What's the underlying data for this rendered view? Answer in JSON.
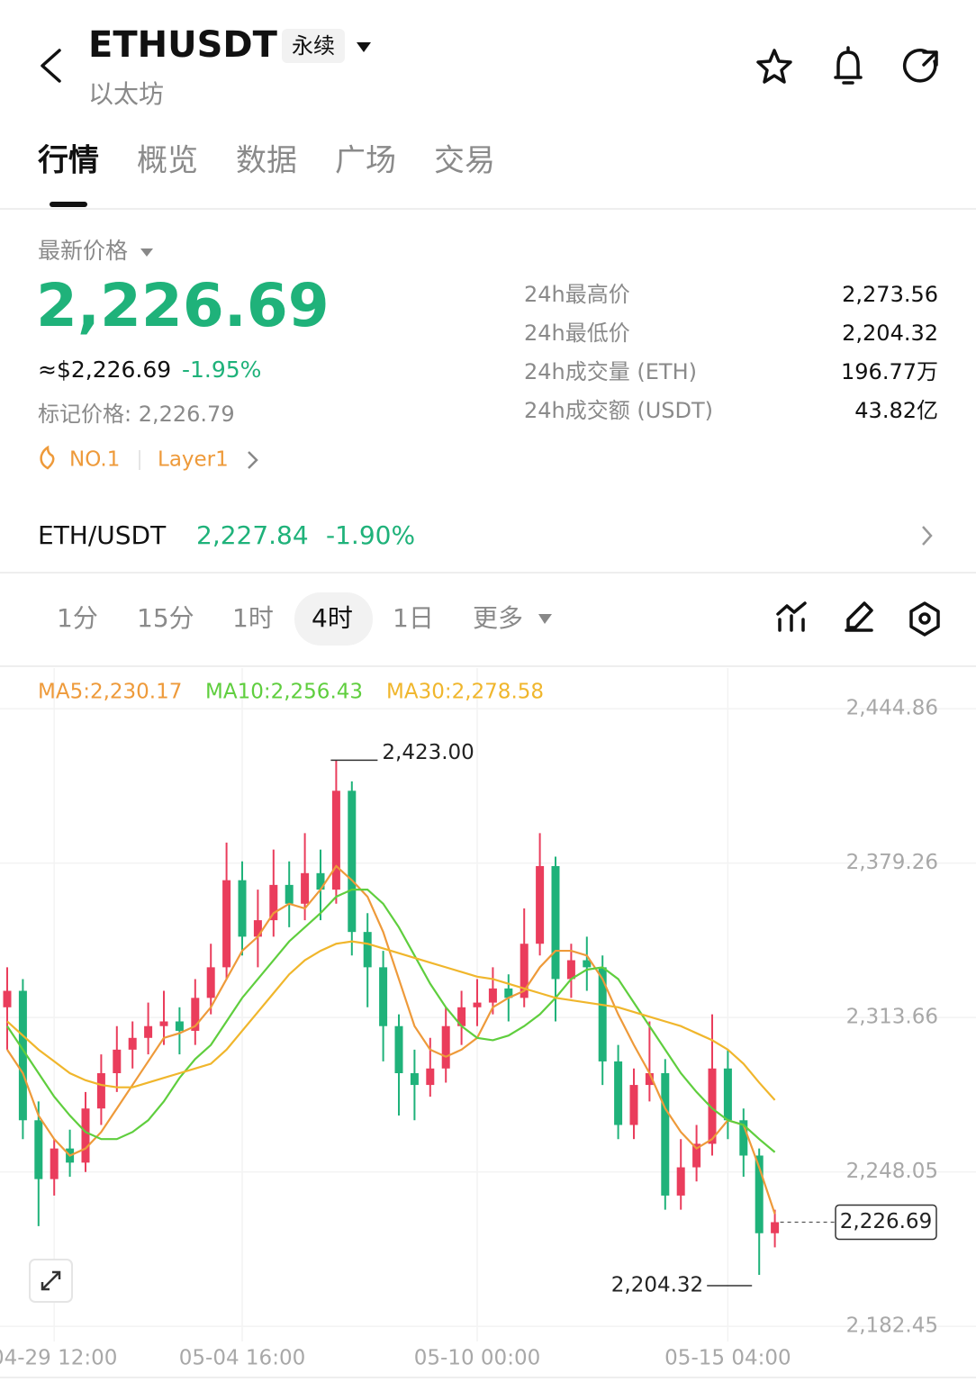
{
  "header": {
    "symbol": "ETHUSDT",
    "contract": "永续",
    "name": "以太坊"
  },
  "tabs": [
    "行情",
    "概览",
    "数据",
    "广场",
    "交易"
  ],
  "price": {
    "label": "最新价格",
    "last": "2,226.69",
    "usd": "≈$2,226.69",
    "change": "-1.95%",
    "mark": "标记价格: 2,226.79",
    "tags": [
      "NO.1",
      "Layer1"
    ]
  },
  "stats": [
    {
      "label": "24h最高价",
      "value": "2,273.56"
    },
    {
      "label": "24h最低价",
      "value": "2,204.32"
    },
    {
      "label": "24h成交量 (ETH)",
      "value": "196.77万"
    },
    {
      "label": "24h成交额 (USDT)",
      "value": "43.82亿"
    }
  ],
  "spot": {
    "pair": "ETH/USDT",
    "price": "2,227.84",
    "change": "-1.90%"
  },
  "intervals": [
    "1分",
    "15分",
    "1时",
    "4时",
    "1日",
    "更多"
  ],
  "chart_data": {
    "type": "candlestick",
    "up_color": "#ea3d5c",
    "down_color": "#1fb27a",
    "categories": [
      null,
      null,
      null,
      "04-29 12:00",
      null,
      null,
      null,
      null,
      null,
      null,
      null,
      null,
      null,
      null,
      null,
      "05-04 16:00",
      null,
      null,
      null,
      null,
      null,
      null,
      null,
      null,
      null,
      null,
      null,
      null,
      null,
      null,
      "05-10 00:00",
      null,
      null,
      null,
      null,
      null,
      null,
      null,
      null,
      null,
      null,
      null,
      null,
      null,
      null,
      null,
      "05-15 04:00",
      null,
      null,
      null
    ],
    "ohlc": [
      [
        2318,
        2335,
        2300,
        2325
      ],
      [
        2325,
        2330,
        2262,
        2270
      ],
      [
        2270,
        2278,
        2225,
        2245
      ],
      [
        2245,
        2262,
        2238,
        2258
      ],
      [
        2258,
        2266,
        2246,
        2252
      ],
      [
        2252,
        2282,
        2248,
        2275
      ],
      [
        2275,
        2298,
        2268,
        2290
      ],
      [
        2290,
        2310,
        2282,
        2300
      ],
      [
        2300,
        2312,
        2292,
        2305
      ],
      [
        2305,
        2320,
        2298,
        2310
      ],
      [
        2310,
        2325,
        2302,
        2312
      ],
      [
        2312,
        2318,
        2298,
        2308
      ],
      [
        2308,
        2330,
        2302,
        2322
      ],
      [
        2322,
        2345,
        2315,
        2335
      ],
      [
        2335,
        2388,
        2330,
        2372
      ],
      [
        2372,
        2380,
        2340,
        2348
      ],
      [
        2348,
        2368,
        2335,
        2355
      ],
      [
        2355,
        2385,
        2348,
        2370
      ],
      [
        2370,
        2380,
        2352,
        2362
      ],
      [
        2362,
        2392,
        2355,
        2375
      ],
      [
        2375,
        2385,
        2355,
        2368
      ],
      [
        2368,
        2423.0,
        2362,
        2410
      ],
      [
        2410,
        2414,
        2340,
        2350
      ],
      [
        2350,
        2358,
        2318,
        2335
      ],
      [
        2335,
        2342,
        2295,
        2310
      ],
      [
        2310,
        2315,
        2272,
        2290
      ],
      [
        2290,
        2300,
        2270,
        2285
      ],
      [
        2285,
        2305,
        2280,
        2292
      ],
      [
        2292,
        2318,
        2286,
        2310
      ],
      [
        2310,
        2325,
        2302,
        2318
      ],
      [
        2318,
        2330,
        2310,
        2320
      ],
      [
        2320,
        2335,
        2315,
        2326
      ],
      [
        2326,
        2332,
        2312,
        2322
      ],
      [
        2322,
        2360,
        2318,
        2345
      ],
      [
        2345,
        2392,
        2340,
        2378
      ],
      [
        2378,
        2382,
        2312,
        2330
      ],
      [
        2330,
        2345,
        2322,
        2338
      ],
      [
        2338,
        2348,
        2325,
        2335
      ],
      [
        2335,
        2340,
        2285,
        2295
      ],
      [
        2295,
        2302,
        2262,
        2268
      ],
      [
        2268,
        2292,
        2262,
        2285
      ],
      [
        2285,
        2312,
        2278,
        2290
      ],
      [
        2290,
        2296,
        2232,
        2238
      ],
      [
        2238,
        2262,
        2232,
        2250
      ],
      [
        2250,
        2268,
        2244,
        2260
      ],
      [
        2260,
        2315,
        2255,
        2292
      ],
      [
        2292,
        2300,
        2262,
        2270
      ],
      [
        2270,
        2275,
        2246,
        2255
      ],
      [
        2255,
        2258,
        2204.32,
        2222
      ],
      [
        2222,
        2232,
        2216,
        2226.69
      ]
    ],
    "ma": [
      {
        "name": "MA5:2,230.17",
        "color": "#ee9a3a",
        "values": [
          2300,
          2290,
          2272,
          2262,
          2255,
          2258,
          2265,
          2275,
          2285,
          2295,
          2305,
          2307,
          2310,
          2318,
          2330,
          2342,
          2348,
          2358,
          2362,
          2360,
          2368,
          2378,
          2372,
          2365,
          2350,
          2330,
          2310,
          2300,
          2297,
          2300,
          2305,
          2318,
          2322,
          2325,
          2335,
          2342,
          2342,
          2340,
          2330,
          2315,
          2302,
          2290,
          2275,
          2265,
          2258,
          2262,
          2270,
          2268,
          2250,
          2230.17
        ]
      },
      {
        "name": "MA10:2,256.43",
        "color": "#5fce3e",
        "values": [
          2310,
          2300,
          2290,
          2280,
          2272,
          2265,
          2262,
          2262,
          2265,
          2270,
          2278,
          2288,
          2296,
          2302,
          2312,
          2322,
          2330,
          2338,
          2346,
          2352,
          2358,
          2365,
          2368,
          2368,
          2362,
          2352,
          2340,
          2328,
          2318,
          2310,
          2305,
          2304,
          2306,
          2310,
          2315,
          2322,
          2330,
          2334,
          2335,
          2330,
          2320,
          2310,
          2300,
          2290,
          2282,
          2275,
          2270,
          2268,
          2262,
          2256.43
        ]
      },
      {
        "name": "MA30:2,278.58",
        "color": "#f0b62c",
        "values": [
          2312,
          2306,
          2300,
          2295,
          2290,
          2287,
          2285,
          2284,
          2284,
          2286,
          2288,
          2290,
          2292,
          2294,
          2300,
          2308,
          2316,
          2324,
          2332,
          2338,
          2342,
          2345,
          2346,
          2345,
          2343,
          2341,
          2339,
          2337,
          2335,
          2333,
          2331,
          2330,
          2328,
          2326,
          2324,
          2322,
          2321,
          2320,
          2319,
          2318,
          2316,
          2314,
          2312,
          2310,
          2307,
          2304,
          2300,
          2294,
          2286,
          2278.58
        ]
      }
    ],
    "high_label": "2,423.00",
    "low_label": "2,204.32",
    "last_label": "2,226.69",
    "ylim": [
      2176,
      2461
    ],
    "yticks": [
      {
        "value": 2182.45,
        "label": "2,182.45"
      },
      {
        "value": 2248.05,
        "label": "2,248.05"
      },
      {
        "value": 2313.66,
        "label": "2,313.66"
      },
      {
        "value": 2379.26,
        "label": "2,379.26"
      },
      {
        "value": 2444.86,
        "label": "2,444.86"
      }
    ],
    "grid": true
  }
}
